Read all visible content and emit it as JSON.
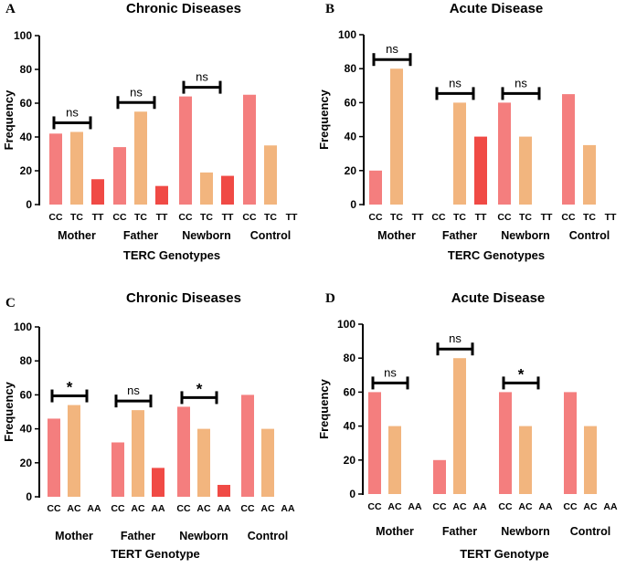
{
  "colors": {
    "c1": "#F47E7E",
    "c2": "#F2B57E",
    "c3": "#F04A45",
    "c3b": "#FCC07E",
    "axis": "#000000"
  },
  "chart_data": [
    {
      "panel": "A",
      "type": "bar",
      "title": "Chronic Diseases",
      "xlabel": "TERC Genotypes",
      "ylabel": "Frequency",
      "ylim": [
        0,
        100
      ],
      "yticks": [
        0,
        20,
        40,
        60,
        80,
        100
      ],
      "genotypes": [
        "CC",
        "TC",
        "TT"
      ],
      "groups": [
        {
          "name": "Mother",
          "values": [
            42,
            43,
            15
          ],
          "annotation": "ns"
        },
        {
          "name": "Father",
          "values": [
            34,
            55,
            11
          ],
          "annotation": "ns"
        },
        {
          "name": "Newborn",
          "values": [
            64,
            19,
            17
          ],
          "annotation": "ns"
        },
        {
          "name": "Control",
          "values": [
            65,
            35,
            0
          ],
          "annotation": ""
        }
      ]
    },
    {
      "panel": "B",
      "type": "bar",
      "title": "Acute Disease",
      "xlabel": "TERC Genotypes",
      "ylabel": "Frequency",
      "ylim": [
        0,
        100
      ],
      "yticks": [
        0,
        20,
        40,
        60,
        80,
        100
      ],
      "genotypes": [
        "CC",
        "TC",
        "TT"
      ],
      "groups": [
        {
          "name": "Mother",
          "values": [
            20,
            80,
            0
          ],
          "annotation": "ns"
        },
        {
          "name": "Father",
          "values": [
            0,
            60,
            40
          ],
          "annotation": "ns"
        },
        {
          "name": "Newborn",
          "values": [
            60,
            40,
            0
          ],
          "annotation": "ns"
        },
        {
          "name": "Control",
          "values": [
            65,
            35,
            0
          ],
          "annotation": ""
        }
      ]
    },
    {
      "panel": "C",
      "type": "bar",
      "title": "Chronic Diseases",
      "xlabel": "TERT Genotype",
      "ylabel": "Frequency",
      "ylim": [
        0,
        100
      ],
      "yticks": [
        0,
        20,
        40,
        60,
        80,
        100
      ],
      "genotypes": [
        "CC",
        "AC",
        "AA"
      ],
      "groups": [
        {
          "name": "Mother",
          "values": [
            46,
            54,
            0
          ],
          "annotation": "*"
        },
        {
          "name": "Father",
          "values": [
            32,
            51,
            17
          ],
          "annotation": "ns"
        },
        {
          "name": "Newborn",
          "values": [
            53,
            40,
            7
          ],
          "annotation": "*"
        },
        {
          "name": "Control",
          "values": [
            60,
            40,
            0
          ],
          "annotation": ""
        }
      ]
    },
    {
      "panel": "D",
      "type": "bar",
      "title": "Acute Disease",
      "xlabel": "TERT Genotype",
      "ylabel": "Frequency",
      "ylim": [
        0,
        100
      ],
      "yticks": [
        0,
        20,
        40,
        60,
        80,
        100
      ],
      "genotypes": [
        "CC",
        "AC",
        "AA"
      ],
      "groups": [
        {
          "name": "Mother",
          "values": [
            60,
            40,
            0
          ],
          "annotation": "ns"
        },
        {
          "name": "Father",
          "values": [
            20,
            80,
            0
          ],
          "annotation": "ns"
        },
        {
          "name": "Newborn",
          "values": [
            60,
            40,
            0
          ],
          "annotation": "*"
        },
        {
          "name": "Control",
          "values": [
            60,
            40,
            0
          ],
          "annotation": ""
        }
      ]
    }
  ]
}
